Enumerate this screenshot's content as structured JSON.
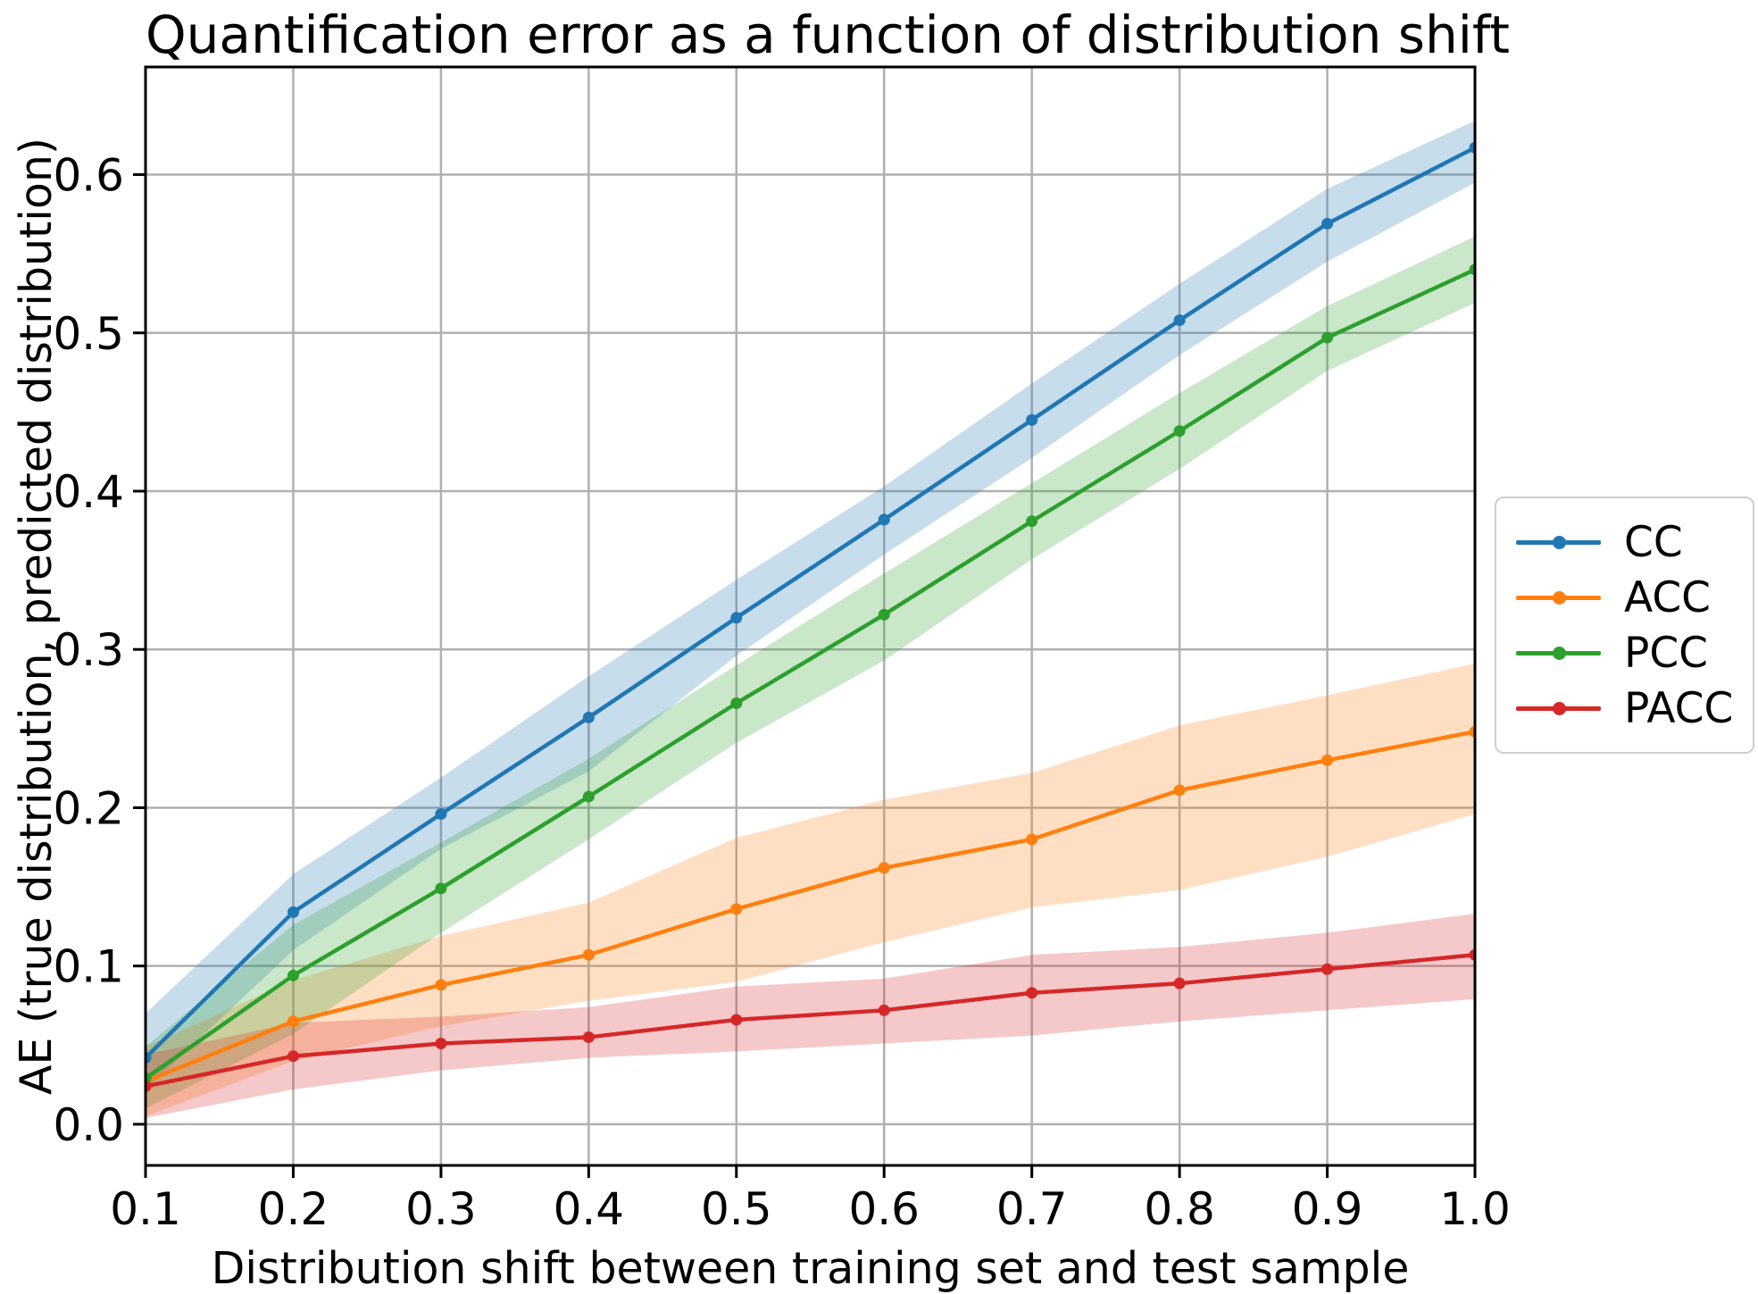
{
  "chart_data": {
    "type": "line",
    "title": "Quantification error as a function of distribution shift",
    "xlabel": "Distribution shift between training set and test sample",
    "ylabel": "AE (true distribution, predicted distribution)",
    "x": [
      0.1,
      0.2,
      0.3,
      0.4,
      0.5,
      0.6,
      0.7,
      0.8,
      0.9,
      1.0
    ],
    "xlim": [
      0.1,
      1.0
    ],
    "ylim": [
      -0.026,
      0.668
    ],
    "xtick_labels": [
      "0.1",
      "0.2",
      "0.3",
      "0.4",
      "0.5",
      "0.6",
      "0.7",
      "0.8",
      "0.9",
      "1.0"
    ],
    "ytick_labels": [
      "0.0",
      "0.1",
      "0.2",
      "0.3",
      "0.4",
      "0.5",
      "0.6"
    ],
    "grid": true,
    "grid_color": "#b0b0b0",
    "band_opacity": 0.25,
    "legend_position": "outside-right",
    "series": [
      {
        "name": "CC",
        "color": "#1f77b4",
        "values": [
          0.042,
          0.134,
          0.196,
          0.257,
          0.32,
          0.382,
          0.445,
          0.508,
          0.569,
          0.617
        ],
        "band_lower": [
          0.022,
          0.11,
          0.174,
          0.223,
          0.296,
          0.36,
          0.421,
          0.486,
          0.545,
          0.595
        ],
        "band_upper": [
          0.07,
          0.158,
          0.219,
          0.283,
          0.344,
          0.403,
          0.468,
          0.531,
          0.591,
          0.634
        ]
      },
      {
        "name": "ACC",
        "color": "#ff7f0e",
        "values": [
          0.027,
          0.065,
          0.088,
          0.107,
          0.136,
          0.162,
          0.18,
          0.211,
          0.23,
          0.248
        ],
        "band_lower": [
          0.005,
          0.04,
          0.062,
          0.078,
          0.09,
          0.115,
          0.137,
          0.148,
          0.169,
          0.196
        ],
        "band_upper": [
          0.049,
          0.091,
          0.119,
          0.14,
          0.181,
          0.205,
          0.222,
          0.252,
          0.271,
          0.291
        ]
      },
      {
        "name": "PCC",
        "color": "#2ca02c",
        "values": [
          0.029,
          0.094,
          0.149,
          0.207,
          0.266,
          0.322,
          0.381,
          0.438,
          0.497,
          0.54
        ],
        "band_lower": [
          0.01,
          0.057,
          0.121,
          0.18,
          0.241,
          0.293,
          0.357,
          0.414,
          0.476,
          0.519
        ],
        "band_upper": [
          0.049,
          0.126,
          0.178,
          0.231,
          0.29,
          0.348,
          0.405,
          0.462,
          0.517,
          0.561
        ]
      },
      {
        "name": "PACC",
        "color": "#d62728",
        "values": [
          0.024,
          0.043,
          0.051,
          0.055,
          0.066,
          0.072,
          0.083,
          0.089,
          0.098,
          0.107
        ],
        "band_lower": [
          0.004,
          0.022,
          0.034,
          0.042,
          0.046,
          0.051,
          0.056,
          0.065,
          0.072,
          0.079
        ],
        "band_upper": [
          0.044,
          0.064,
          0.068,
          0.074,
          0.087,
          0.092,
          0.107,
          0.112,
          0.121,
          0.133
        ]
      }
    ]
  }
}
